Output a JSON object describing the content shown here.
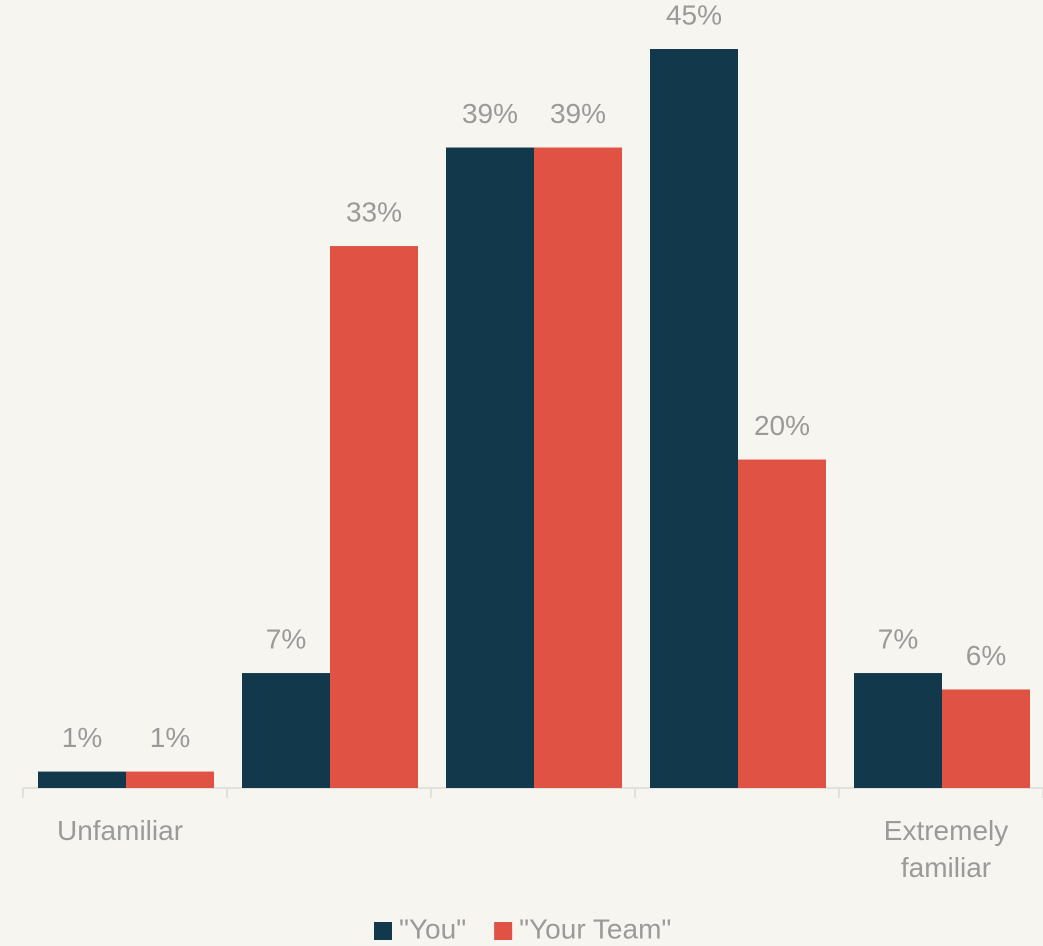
{
  "chart_data": {
    "type": "bar",
    "categories": [
      "Unfamiliar",
      null,
      null,
      null,
      "Extremely familiar"
    ],
    "series": [
      {
        "name": "\"You\"",
        "color": "#12394b",
        "values": [
          1,
          7,
          39,
          45,
          7
        ],
        "value_labels": [
          "1%",
          "7%",
          "39%",
          "45%",
          "7%"
        ]
      },
      {
        "name": "\"Your Team\"",
        "color": "#e05243",
        "values": [
          1,
          33,
          39,
          20,
          6
        ],
        "value_labels": [
          "1%",
          "33%",
          "39%",
          "20%",
          "6%"
        ]
      }
    ],
    "ylim": [
      0,
      45
    ]
  }
}
